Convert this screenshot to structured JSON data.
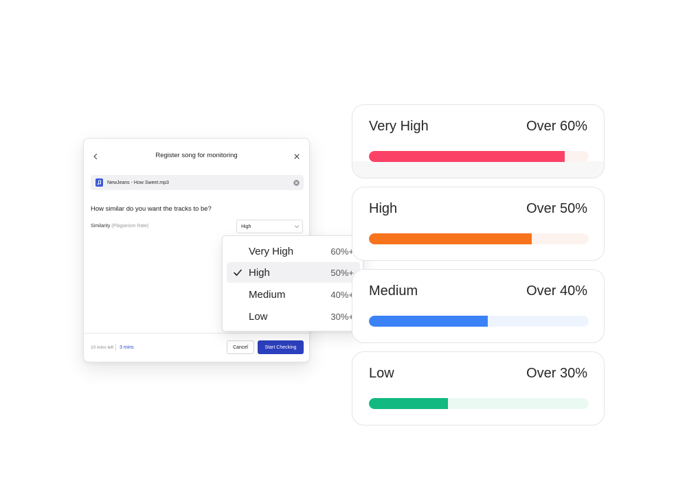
{
  "modal": {
    "title": "Register song for monitoring",
    "file_name": "NewJeans - How Sweet.mp3",
    "question": "How similar do you want the tracks to be?",
    "similarity_label": "Similarity",
    "similarity_hint": "(Plagiarism Rate)",
    "select_value": "High",
    "time_left_label": "10 mins left",
    "time_value": "3 mins",
    "cancel_label": "Cancel",
    "start_label": "Start Checking"
  },
  "dropdown": {
    "options": [
      {
        "label": "Very High",
        "pct": "60%+",
        "selected": false
      },
      {
        "label": "High",
        "pct": "50%+",
        "selected": true
      },
      {
        "label": "Medium",
        "pct": "40%+",
        "selected": false
      },
      {
        "label": "Low",
        "pct": "30%+",
        "selected": false
      }
    ]
  },
  "levels": [
    {
      "title": "Very High",
      "over": "Over 60%",
      "fill": 0.89,
      "color": "#fb4266",
      "track": "#fdf3ee"
    },
    {
      "title": "High",
      "over": "Over 50%",
      "fill": 0.74,
      "color": "#f7731c",
      "track": "#fdf3ee"
    },
    {
      "title": "Medium",
      "over": "Over 40%",
      "fill": 0.54,
      "color": "#3b82f6",
      "track": "#eef4fe"
    },
    {
      "title": "Low",
      "over": "Over 30%",
      "fill": 0.36,
      "color": "#12b981",
      "track": "#eafaf3"
    }
  ],
  "colors": {
    "primary": "#2c3fbd",
    "link": "#2f49c9",
    "file_icon": "#3d5ad6"
  },
  "icons": {
    "back": "chevron-left-icon",
    "close": "close-icon",
    "file": "music-file-icon",
    "remove": "remove-circle-icon",
    "select": "chevron-down-icon",
    "check": "check-icon"
  }
}
